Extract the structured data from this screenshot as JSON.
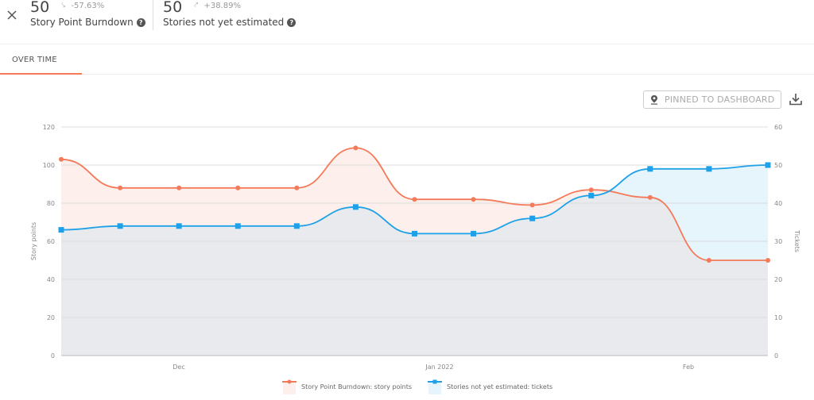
{
  "header": {
    "metrics": [
      {
        "value": "50",
        "trend_icon": "trend-down",
        "delta": "-57.63%",
        "label": "Story Point Burndown"
      },
      {
        "value": "50",
        "trend_icon": "trend-up",
        "delta": "+38.89%",
        "label": "Stories not yet estimated"
      }
    ]
  },
  "tabs": [
    {
      "label": "OVER TIME",
      "active": true
    }
  ],
  "toolbar": {
    "pin_label": "PINNED TO DASHBOARD"
  },
  "colors": {
    "burndown": "#f47a5a",
    "burndown_fill": "#fdefeb",
    "estimated": "#1ea1e8",
    "estimated_fill": "#e6f4fc",
    "overlap_fill": "#e8eaed"
  },
  "chart_data": {
    "type": "area",
    "title": "",
    "x_ticks": [
      "Dec",
      "Jan 2022",
      "Feb"
    ],
    "ylabel": "Story points",
    "y2label": "Tickets",
    "ylim": [
      0,
      120
    ],
    "y2lim": [
      0,
      60
    ],
    "y_ticks": [
      0,
      20,
      40,
      60,
      80,
      100,
      120
    ],
    "y2_ticks": [
      0,
      10,
      20,
      30,
      40,
      50,
      60
    ],
    "grid": true,
    "legend_position": "bottom",
    "series": [
      {
        "name": "Story Point Burndown: story points",
        "axis": "left",
        "marker": "circle",
        "values": [
          103,
          88,
          88,
          88,
          88,
          109,
          82,
          82,
          79,
          87,
          83,
          50,
          50
        ]
      },
      {
        "name": "Stories not yet estimated: tickets",
        "axis": "right",
        "marker": "square",
        "values": [
          33,
          34,
          34,
          34,
          34,
          39,
          32,
          32,
          36,
          42,
          49,
          49,
          50
        ]
      }
    ]
  }
}
